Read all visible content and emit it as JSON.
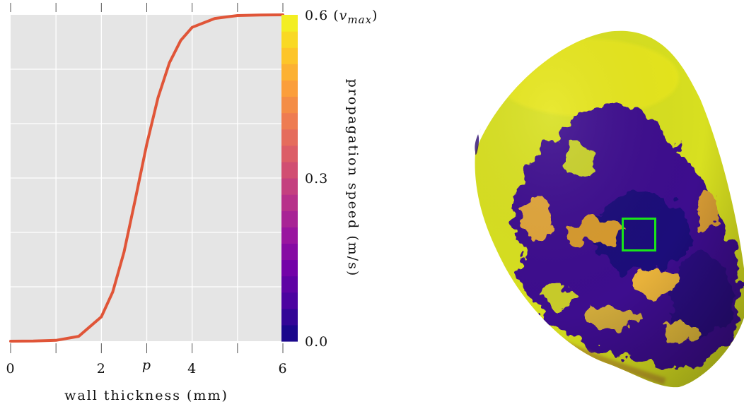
{
  "chart_data": {
    "type": "line",
    "title": "",
    "xlabel": "wall thickness (mm)",
    "ylabel": "",
    "xlim": [
      0,
      6
    ],
    "ylim": [
      0,
      0.6
    ],
    "x_ticks": [
      {
        "value": 0,
        "label": "0"
      },
      {
        "value": 2,
        "label": "2"
      },
      {
        "value": 3,
        "label": "p"
      },
      {
        "value": 4,
        "label": "4"
      },
      {
        "value": 6,
        "label": "6"
      }
    ],
    "grid": true,
    "series": [
      {
        "color": "#e05538",
        "x": [
          0,
          0.5,
          1.0,
          1.5,
          2.0,
          2.25,
          2.5,
          2.75,
          3.0,
          3.25,
          3.5,
          3.75,
          4.0,
          4.5,
          5.0,
          5.5,
          6.0
        ],
        "y": [
          0.0,
          0.0003,
          0.0016,
          0.0089,
          0.0448,
          0.0905,
          0.164,
          0.262,
          0.362,
          0.448,
          0.512,
          0.553,
          0.577,
          0.5934,
          0.5987,
          0.5997,
          0.6
        ]
      }
    ],
    "colorbar": {
      "label": "propagation speed (m/s)",
      "range": [
        0,
        0.6
      ],
      "ticks": [
        {
          "value": 0.6,
          "label": "0.6",
          "suffix": "v",
          "subscript": "max"
        },
        {
          "value": 0.3,
          "label": "0.3"
        },
        {
          "value": 0.0,
          "label": "0.0"
        }
      ],
      "levels": 20,
      "colormap": [
        "#0d0887",
        "#46039f",
        "#7201a8",
        "#9c179e",
        "#bd3786",
        "#d8576b",
        "#ed7953",
        "#fb9f3a",
        "#fdca26",
        "#f0f921"
      ]
    }
  },
  "rendering": {
    "highlight_box_color": "#19e619",
    "surface_base_color": "#d8e020"
  }
}
